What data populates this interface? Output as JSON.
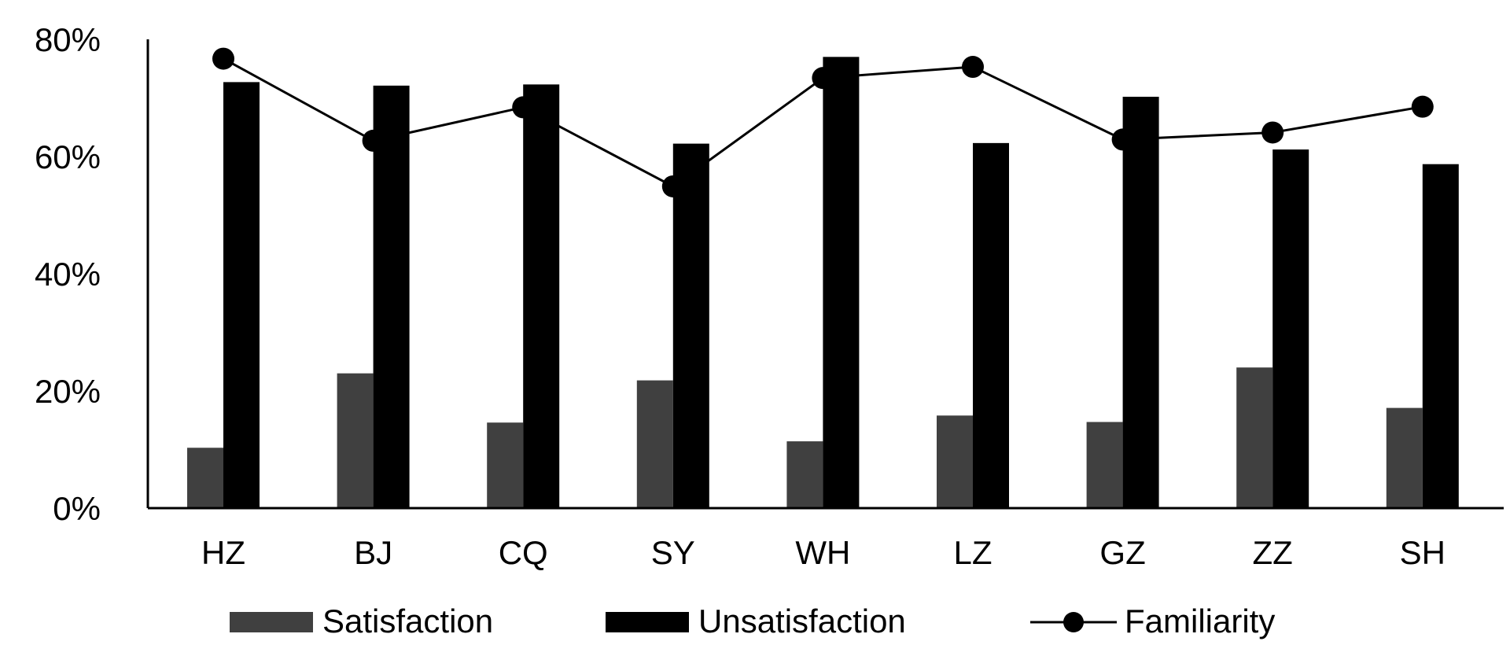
{
  "chart_data": {
    "type": "bar",
    "title": "",
    "xlabel": "",
    "ylabel": "",
    "ylim": [
      0,
      80
    ],
    "y_ticks": [
      "0%",
      "20%",
      "40%",
      "60%",
      "80%"
    ],
    "y_tick_values": [
      0,
      20,
      40,
      60,
      80
    ],
    "categories": [
      "HZ",
      "BJ",
      "CQ",
      "SY",
      "WH",
      "LZ",
      "GZ",
      "ZZ",
      "SH"
    ],
    "series": [
      {
        "name": "Satisfaction",
        "kind": "bar",
        "color": "#404040",
        "values": [
          10.3,
          23.0,
          14.6,
          21.8,
          11.4,
          15.8,
          14.7,
          24.0,
          17.1
        ]
      },
      {
        "name": "Unsatisfaction",
        "kind": "bar",
        "color": "#000000",
        "values": [
          72.7,
          72.1,
          72.3,
          62.2,
          77.0,
          62.3,
          70.2,
          61.2,
          58.7
        ]
      },
      {
        "name": "Familiarity",
        "kind": "line",
        "color": "#000000",
        "values": [
          76.7,
          62.7,
          68.4,
          54.9,
          73.4,
          75.3,
          62.9,
          64.1,
          68.5
        ]
      }
    ],
    "legend_position": "bottom",
    "grid": false
  }
}
